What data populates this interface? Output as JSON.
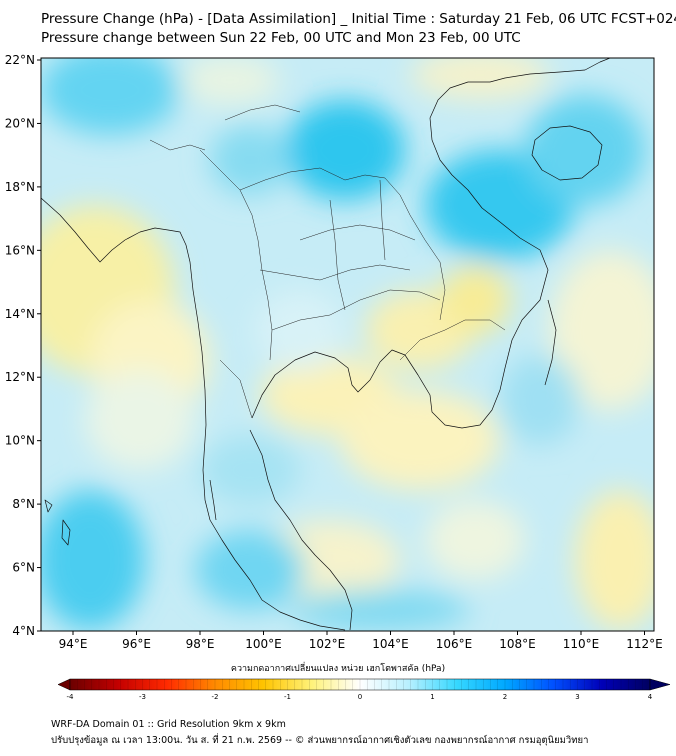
{
  "header": {
    "title_line1": "Pressure Change (hPa) - [Data Assimilation] _ Initial Time : Saturday 21 Feb, 06 UTC FCST+024",
    "title_line2": "Pressure change between Sun 22 Feb, 00 UTC and Mon 23 Feb, 00 UTC"
  },
  "map": {
    "lat_labels": [
      "22°N",
      "20°N",
      "18°N",
      "16°N",
      "14°N",
      "12°N",
      "10°N",
      "8°N",
      "6°N",
      "4°N"
    ],
    "lon_labels": [
      "94°E",
      "96°E",
      "98°E",
      "100°E",
      "102°E",
      "104°E",
      "106°E",
      "108°E",
      "110°E",
      "112°E"
    ],
    "field_colors": {
      "positive_strong": "#2cc4ee",
      "positive_mid": "#8fdcf2",
      "positive_weak": "#d4f1f6",
      "negative_weak": "#fbf3bf",
      "negative_mid": "#f8ee98"
    },
    "coastline_color": "#111111"
  },
  "colorbar": {
    "caption": "ความกดอากาศเปลี่ยนแปลง หน่วย เฮกโตพาสคัล (hPa)",
    "tick_labels": [
      "-4",
      "-3",
      "-2",
      "-1",
      "0",
      "1",
      "2",
      "3",
      "4"
    ],
    "min": -4,
    "max": 4,
    "extend": "both",
    "colors": [
      "#6b0000",
      "#c40000",
      "#ff2a00",
      "#ff8a00",
      "#ffc400",
      "#fff27a",
      "#ffffff",
      "#b8f0ff",
      "#36d8ff",
      "#00a8ff",
      "#0050ff",
      "#0000b8",
      "#000060"
    ]
  },
  "footer": {
    "line1": "WRF-DA Domain 01 :: Grid Resolution 9km x 9km",
    "line2": "ปรับปรุงข้อมูล ณ เวลา 13:00น. วัน ส. ที่ 21 ก.พ. 2569 -- © ส่วนพยากรณ์อากาศเชิงตัวเลข กองพยากรณ์อากาศ กรมอุตุนิยมวิทยา"
  }
}
